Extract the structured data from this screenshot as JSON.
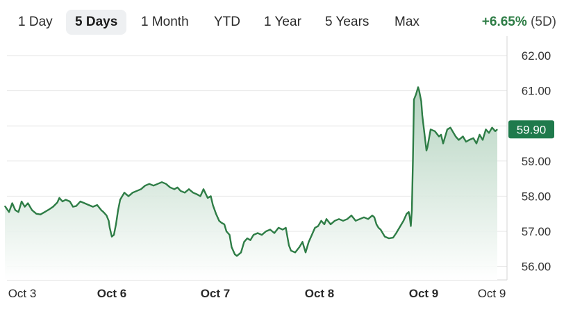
{
  "range_tabs": [
    {
      "label": "1 Day",
      "active": false
    },
    {
      "label": "5 Days",
      "active": true
    },
    {
      "label": "1 Month",
      "active": false
    },
    {
      "label": "YTD",
      "active": false
    },
    {
      "label": "1 Year",
      "active": false
    },
    {
      "label": "5 Years",
      "active": false
    },
    {
      "label": "Max",
      "active": false
    }
  ],
  "change": {
    "percent": "+6.65%",
    "period": "(5D)"
  },
  "colors": {
    "line": "#2e7d46",
    "fill_top": "#a9cdb6",
    "fill_bottom": "#ffffff",
    "badge_bg": "#1f7a4c",
    "badge_text": "#ffffff",
    "grid": "#e6e6e6"
  },
  "chart_data": {
    "type": "area",
    "title": "",
    "xlabel": "",
    "ylabel": "",
    "ylim": [
      55.65,
      62.3
    ],
    "y_ticks": [
      "62.00",
      "61.00",
      "59.00",
      "58.00",
      "57.00",
      "56.00"
    ],
    "x_labels": [
      {
        "label": "Oct 3",
        "bold": false,
        "x": 0
      },
      {
        "label": "Oct 6",
        "bold": true,
        "x": 1
      },
      {
        "label": "Oct 7",
        "bold": true,
        "x": 2
      },
      {
        "label": "Oct 8",
        "bold": true,
        "x": 3
      },
      {
        "label": "Oct 9",
        "bold": true,
        "x": 4
      },
      {
        "label": "Oct 9",
        "bold": false,
        "x": 4.8
      }
    ],
    "last_price": "59.90",
    "grid": true,
    "points": [
      [
        -0.02,
        57.72
      ],
      [
        0.02,
        57.55
      ],
      [
        0.05,
        57.8
      ],
      [
        0.08,
        57.6
      ],
      [
        0.11,
        57.55
      ],
      [
        0.14,
        57.85
      ],
      [
        0.17,
        57.7
      ],
      [
        0.2,
        57.8
      ],
      [
        0.24,
        57.6
      ],
      [
        0.28,
        57.5
      ],
      [
        0.32,
        57.48
      ],
      [
        0.36,
        57.55
      ],
      [
        0.4,
        57.62
      ],
      [
        0.44,
        57.7
      ],
      [
        0.48,
        57.82
      ],
      [
        0.5,
        57.95
      ],
      [
        0.53,
        57.85
      ],
      [
        0.56,
        57.9
      ],
      [
        0.6,
        57.85
      ],
      [
        0.63,
        57.7
      ],
      [
        0.66,
        57.72
      ],
      [
        0.7,
        57.85
      ],
      [
        0.74,
        57.8
      ],
      [
        0.78,
        57.75
      ],
      [
        0.82,
        57.7
      ],
      [
        0.86,
        57.75
      ],
      [
        0.9,
        57.6
      ],
      [
        0.92,
        57.55
      ],
      [
        0.95,
        57.45
      ],
      [
        0.97,
        57.3
      ],
      [
        0.98,
        57.1
      ],
      [
        1.0,
        56.85
      ],
      [
        1.02,
        56.9
      ],
      [
        1.04,
        57.2
      ],
      [
        1.06,
        57.6
      ],
      [
        1.08,
        57.9
      ],
      [
        1.12,
        58.1
      ],
      [
        1.16,
        58.0
      ],
      [
        1.2,
        58.1
      ],
      [
        1.24,
        58.15
      ],
      [
        1.28,
        58.2
      ],
      [
        1.32,
        58.3
      ],
      [
        1.36,
        58.35
      ],
      [
        1.4,
        58.3
      ],
      [
        1.44,
        58.35
      ],
      [
        1.48,
        58.4
      ],
      [
        1.52,
        58.35
      ],
      [
        1.56,
        58.25
      ],
      [
        1.6,
        58.2
      ],
      [
        1.63,
        58.25
      ],
      [
        1.66,
        58.15
      ],
      [
        1.7,
        58.1
      ],
      [
        1.74,
        58.2
      ],
      [
        1.78,
        58.1
      ],
      [
        1.82,
        58.05
      ],
      [
        1.85,
        58.0
      ],
      [
        1.88,
        58.2
      ],
      [
        1.92,
        57.95
      ],
      [
        1.95,
        58.0
      ],
      [
        1.97,
        57.75
      ],
      [
        2.0,
        57.5
      ],
      [
        2.03,
        57.3
      ],
      [
        2.05,
        57.25
      ],
      [
        2.08,
        57.2
      ],
      [
        2.1,
        57.0
      ],
      [
        2.13,
        56.9
      ],
      [
        2.15,
        56.55
      ],
      [
        2.18,
        56.35
      ],
      [
        2.2,
        56.3
      ],
      [
        2.24,
        56.4
      ],
      [
        2.27,
        56.7
      ],
      [
        2.3,
        56.8
      ],
      [
        2.33,
        56.75
      ],
      [
        2.36,
        56.9
      ],
      [
        2.4,
        56.95
      ],
      [
        2.44,
        56.9
      ],
      [
        2.48,
        57.0
      ],
      [
        2.52,
        57.05
      ],
      [
        2.56,
        56.95
      ],
      [
        2.6,
        57.1
      ],
      [
        2.64,
        57.05
      ],
      [
        2.67,
        57.1
      ],
      [
        2.7,
        56.6
      ],
      [
        2.72,
        56.45
      ],
      [
        2.76,
        56.4
      ],
      [
        2.8,
        56.55
      ],
      [
        2.83,
        56.7
      ],
      [
        2.86,
        56.4
      ],
      [
        2.89,
        56.7
      ],
      [
        2.92,
        56.9
      ],
      [
        2.95,
        57.1
      ],
      [
        2.98,
        57.15
      ],
      [
        3.01,
        57.3
      ],
      [
        3.04,
        57.2
      ],
      [
        3.06,
        57.35
      ],
      [
        3.1,
        57.2
      ],
      [
        3.14,
        57.3
      ],
      [
        3.18,
        57.35
      ],
      [
        3.22,
        57.3
      ],
      [
        3.26,
        57.35
      ],
      [
        3.3,
        57.45
      ],
      [
        3.34,
        57.3
      ],
      [
        3.38,
        57.35
      ],
      [
        3.42,
        57.4
      ],
      [
        3.46,
        57.35
      ],
      [
        3.5,
        57.45
      ],
      [
        3.52,
        57.4
      ],
      [
        3.54,
        57.2
      ],
      [
        3.56,
        57.1
      ],
      [
        3.58,
        57.05
      ],
      [
        3.62,
        56.85
      ],
      [
        3.66,
        56.8
      ],
      [
        3.7,
        56.82
      ],
      [
        3.73,
        56.95
      ],
      [
        3.76,
        57.1
      ],
      [
        3.8,
        57.3
      ],
      [
        3.83,
        57.5
      ],
      [
        3.85,
        57.55
      ],
      [
        3.86,
        57.4
      ],
      [
        3.87,
        57.15
      ],
      [
        3.88,
        57.6
      ],
      [
        3.89,
        59.0
      ],
      [
        3.9,
        60.75
      ],
      [
        3.92,
        60.9
      ],
      [
        3.94,
        61.1
      ],
      [
        3.95,
        61.0
      ],
      [
        3.97,
        60.7
      ],
      [
        3.98,
        60.3
      ],
      [
        4.0,
        59.8
      ],
      [
        4.02,
        59.3
      ],
      [
        4.03,
        59.4
      ],
      [
        4.06,
        59.9
      ],
      [
        4.1,
        59.85
      ],
      [
        4.14,
        59.7
      ],
      [
        4.16,
        59.75
      ],
      [
        4.18,
        59.5
      ],
      [
        4.22,
        59.9
      ],
      [
        4.25,
        59.95
      ],
      [
        4.3,
        59.7
      ],
      [
        4.33,
        59.6
      ],
      [
        4.37,
        59.7
      ],
      [
        4.4,
        59.55
      ],
      [
        4.43,
        59.6
      ],
      [
        4.47,
        59.65
      ],
      [
        4.5,
        59.5
      ],
      [
        4.53,
        59.75
      ],
      [
        4.56,
        59.6
      ],
      [
        4.59,
        59.9
      ],
      [
        4.62,
        59.8
      ],
      [
        4.65,
        59.95
      ],
      [
        4.68,
        59.85
      ],
      [
        4.7,
        59.9
      ]
    ]
  }
}
